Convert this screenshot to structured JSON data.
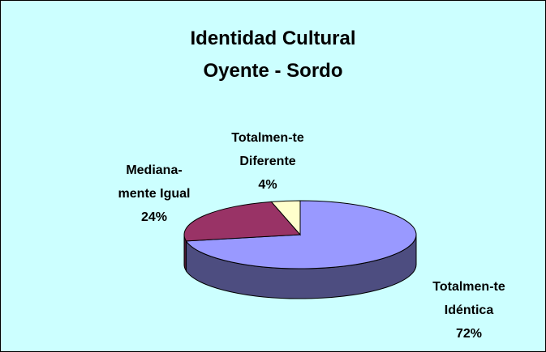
{
  "chart_data": {
    "type": "pie3d",
    "title": "Identidad Cultural\nOyente - Sordo",
    "categories": [
      "Totalmen-te\nIdéntica",
      "Mediana-\nmente Igual",
      "Totalmen-te\nDiferente"
    ],
    "values": [
      72,
      24,
      4
    ],
    "value_labels": [
      "72%",
      "24%",
      "4%"
    ],
    "colors": [
      "#9999ff",
      "#993366",
      "#ffffcc"
    ]
  }
}
